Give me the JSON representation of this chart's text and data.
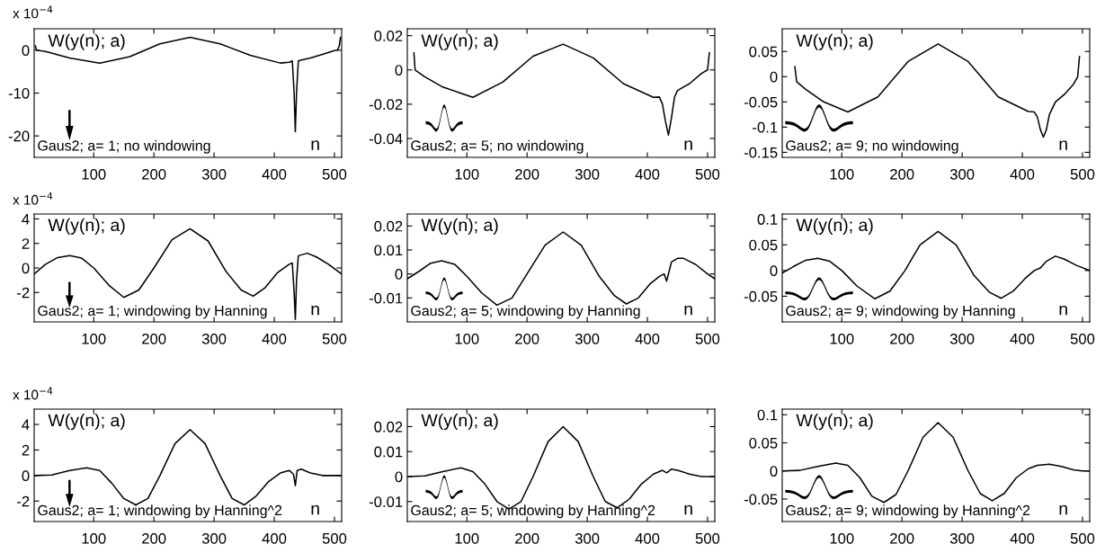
{
  "chart_data": [
    {
      "type": "line",
      "color": "#000000",
      "xlim": [
        1,
        512
      ],
      "xticks": [
        100,
        200,
        300,
        400,
        500
      ],
      "ylim": [
        -25,
        5
      ],
      "yticks": [
        -20,
        -10,
        0
      ],
      "grid": false,
      "legend": false,
      "annotations": [
        "W(y(n); a)",
        "Gaus2; a= 1; no windowing",
        "n",
        "x 10$^{−4}$"
      ],
      "x": [
        3,
        5,
        20,
        60,
        110,
        160,
        210,
        260,
        310,
        360,
        410,
        425,
        430,
        433,
        435,
        437,
        440,
        445,
        460,
        480,
        500,
        505,
        508,
        510
      ],
      "values": [
        1,
        0,
        -0.3,
        -1.8,
        -3,
        -1.5,
        1.5,
        3,
        1.5,
        -1.2,
        -3,
        -2.8,
        -2.5,
        -10,
        -19,
        -10,
        -2.5,
        -2.3,
        -1.8,
        -1,
        -0.1,
        0,
        1,
        3
      ]
    },
    {
      "type": "line",
      "color": "#000000",
      "xlim": [
        1,
        512
      ],
      "xticks": [
        100,
        200,
        300,
        400,
        500
      ],
      "ylim": [
        -0.051,
        0.024
      ],
      "yticks": [
        -0.04,
        -0.02,
        0,
        0.02
      ],
      "grid": false,
      "legend": false,
      "annotations": [
        "W(y(n); a)",
        "Gaus2; a= 5; no windowing",
        "n"
      ],
      "x": [
        12,
        14,
        30,
        60,
        110,
        160,
        210,
        260,
        310,
        360,
        410,
        420,
        425,
        430,
        435,
        440,
        445,
        450,
        470,
        490,
        500,
        503
      ],
      "values": [
        0.01,
        0,
        -0.004,
        -0.01,
        -0.016,
        -0.007,
        0.008,
        0.015,
        0.007,
        -0.008,
        -0.016,
        -0.0158,
        -0.02,
        -0.03,
        -0.038,
        -0.028,
        -0.016,
        -0.012,
        -0.008,
        -0.002,
        0,
        0.01
      ]
    },
    {
      "type": "line",
      "color": "#000000",
      "xlim": [
        1,
        512
      ],
      "xticks": [
        100,
        200,
        300,
        400,
        500
      ],
      "ylim": [
        -0.16,
        0.095
      ],
      "yticks": [
        -0.15,
        -0.1,
        -0.05,
        0,
        0.05
      ],
      "grid": false,
      "legend": false,
      "annotations": [
        "W(y(n); a)",
        "Gaus2; a= 9; no windowing",
        "n"
      ],
      "x": [
        22,
        25,
        40,
        70,
        110,
        160,
        210,
        260,
        310,
        360,
        410,
        420,
        425,
        430,
        435,
        440,
        445,
        455,
        470,
        485,
        492,
        495
      ],
      "values": [
        0.02,
        -0.01,
        -0.025,
        -0.05,
        -0.07,
        -0.04,
        0.03,
        0.065,
        0.03,
        -0.04,
        -0.069,
        -0.07,
        -0.08,
        -0.105,
        -0.12,
        -0.105,
        -0.075,
        -0.05,
        -0.035,
        -0.015,
        0,
        0.04
      ]
    },
    {
      "type": "line",
      "color": "#000000",
      "xlim": [
        1,
        512
      ],
      "xticks": [
        100,
        200,
        300,
        400,
        500
      ],
      "ylim": [
        -4.4,
        4.4
      ],
      "yticks": [
        -2,
        0,
        2,
        4
      ],
      "grid": false,
      "legend": false,
      "annotations": [
        "W(y(n); a)",
        "Gaus2; a= 1; windowing by Hanning",
        "n",
        "x 10$^{−4}$"
      ],
      "x": [
        1,
        20,
        40,
        60,
        80,
        100,
        125,
        150,
        175,
        200,
        230,
        260,
        290,
        320,
        345,
        365,
        385,
        405,
        425,
        430,
        433,
        435,
        437,
        440,
        455,
        470,
        490,
        512
      ],
      "values": [
        -0.5,
        0.3,
        0.85,
        1.0,
        0.8,
        0,
        -1.4,
        -2.4,
        -1.8,
        0,
        2.3,
        3.2,
        2.2,
        -0.3,
        -1.8,
        -2.3,
        -1.6,
        -0.4,
        0.3,
        0.4,
        -2,
        -4.2,
        -1,
        1.0,
        1.2,
        0.9,
        0.3,
        -0.5
      ]
    },
    {
      "type": "line",
      "color": "#000000",
      "xlim": [
        1,
        512
      ],
      "xticks": [
        100,
        200,
        300,
        400,
        500
      ],
      "ylim": [
        -0.02,
        0.025
      ],
      "yticks": [
        -0.01,
        0,
        0.01,
        0.02
      ],
      "grid": false,
      "legend": false,
      "annotations": [
        "W(y(n); a)",
        "Gaus2; a= 5; windowing by Hanning",
        "n"
      ],
      "x": [
        1,
        20,
        40,
        58,
        80,
        100,
        125,
        150,
        175,
        200,
        230,
        260,
        290,
        320,
        345,
        365,
        385,
        405,
        420,
        428,
        432,
        436,
        440,
        450,
        460,
        480,
        500,
        512
      ],
      "values": [
        -0.002,
        0.001,
        0.0045,
        0.0055,
        0.004,
        -0.001,
        -0.008,
        -0.013,
        -0.01,
        0,
        0.012,
        0.0175,
        0.012,
        -0.001,
        -0.009,
        -0.0125,
        -0.01,
        -0.004,
        -0.001,
        0,
        -0.003,
        0.001,
        0.005,
        0.0065,
        0.0065,
        0.004,
        0,
        -0.002
      ]
    },
    {
      "type": "line",
      "color": "#000000",
      "xlim": [
        1,
        512
      ],
      "xticks": [
        100,
        200,
        300,
        400,
        500
      ],
      "ylim": [
        -0.1,
        0.11
      ],
      "yticks": [
        -0.05,
        0,
        0.05,
        0.1
      ],
      "grid": false,
      "legend": false,
      "annotations": [
        "W(y(n); a)",
        "Gaus2; a= 9; windowing by Hanning",
        "n"
      ],
      "x": [
        1,
        20,
        40,
        60,
        80,
        100,
        125,
        155,
        180,
        205,
        230,
        260,
        290,
        320,
        345,
        365,
        385,
        405,
        420,
        430,
        440,
        455,
        470,
        490,
        512
      ],
      "values": [
        -0.005,
        0.008,
        0.02,
        0.024,
        0.018,
        0,
        -0.03,
        -0.055,
        -0.04,
        0,
        0.05,
        0.076,
        0.05,
        -0.01,
        -0.042,
        -0.054,
        -0.04,
        -0.015,
        0,
        0.005,
        0.018,
        0.028,
        0.022,
        0.01,
        0
      ]
    },
    {
      "type": "line",
      "color": "#000000",
      "xlim": [
        1,
        512
      ],
      "xticks": [
        100,
        200,
        300,
        400,
        500
      ],
      "ylim": [
        -3.6,
        5.2
      ],
      "yticks": [
        -2,
        0,
        2,
        4
      ],
      "grid": false,
      "legend": false,
      "annotations": [
        "W(y(n); a)",
        "Gaus2; a= 1; windowing by Hanning^2",
        "n",
        "x 10$^{−4}$"
      ],
      "x": [
        1,
        30,
        60,
        88,
        110,
        130,
        150,
        170,
        190,
        210,
        235,
        260,
        285,
        310,
        330,
        350,
        370,
        390,
        410,
        425,
        432,
        435,
        438,
        445,
        460,
        480,
        500,
        512
      ],
      "values": [
        0,
        0.05,
        0.4,
        0.6,
        0.4,
        -0.6,
        -1.8,
        -2.3,
        -1.8,
        0,
        2.5,
        3.6,
        2.5,
        0,
        -1.8,
        -2.3,
        -1.6,
        -0.5,
        0.2,
        0.4,
        0.1,
        -0.8,
        0.4,
        0.5,
        0.2,
        0,
        0,
        0
      ]
    },
    {
      "type": "line",
      "color": "#000000",
      "xlim": [
        1,
        512
      ],
      "xticks": [
        100,
        200,
        300,
        400,
        500
      ],
      "ylim": [
        -0.018,
        0.027
      ],
      "yticks": [
        -0.01,
        0,
        0.01,
        0.02
      ],
      "grid": false,
      "legend": false,
      "annotations": [
        "W(y(n); a)",
        "Gaus2; a= 5; windowing by Hanning^2",
        "n"
      ],
      "x": [
        1,
        30,
        60,
        90,
        110,
        130,
        150,
        170,
        190,
        210,
        235,
        260,
        285,
        310,
        330,
        350,
        370,
        390,
        410,
        425,
        432,
        440,
        450,
        470,
        490,
        512
      ],
      "values": [
        0,
        0.0003,
        0.002,
        0.0035,
        0.002,
        -0.003,
        -0.01,
        -0.013,
        -0.01,
        0,
        0.014,
        0.02,
        0.014,
        0,
        -0.01,
        -0.0125,
        -0.009,
        -0.003,
        0.001,
        0.0025,
        0.0015,
        0.003,
        0.0025,
        0.001,
        0,
        0
      ]
    },
    {
      "type": "line",
      "color": "#000000",
      "xlim": [
        1,
        512
      ],
      "xticks": [
        100,
        200,
        300,
        400,
        500
      ],
      "ylim": [
        -0.09,
        0.11
      ],
      "yticks": [
        -0.05,
        0,
        0.05,
        0.1
      ],
      "grid": false,
      "legend": false,
      "annotations": [
        "W(y(n); a)",
        "Gaus2; a= 9; windowing by Hanning^2",
        "n"
      ],
      "x": [
        1,
        30,
        60,
        90,
        110,
        130,
        150,
        170,
        190,
        210,
        235,
        260,
        285,
        310,
        330,
        350,
        370,
        390,
        410,
        425,
        445,
        465,
        485,
        500,
        512
      ],
      "values": [
        0,
        0.001,
        0.008,
        0.014,
        0.01,
        -0.012,
        -0.045,
        -0.056,
        -0.042,
        0,
        0.06,
        0.086,
        0.06,
        0,
        -0.04,
        -0.053,
        -0.04,
        -0.012,
        0.004,
        0.01,
        0.012,
        0.008,
        0.002,
        0,
        0
      ]
    }
  ]
}
